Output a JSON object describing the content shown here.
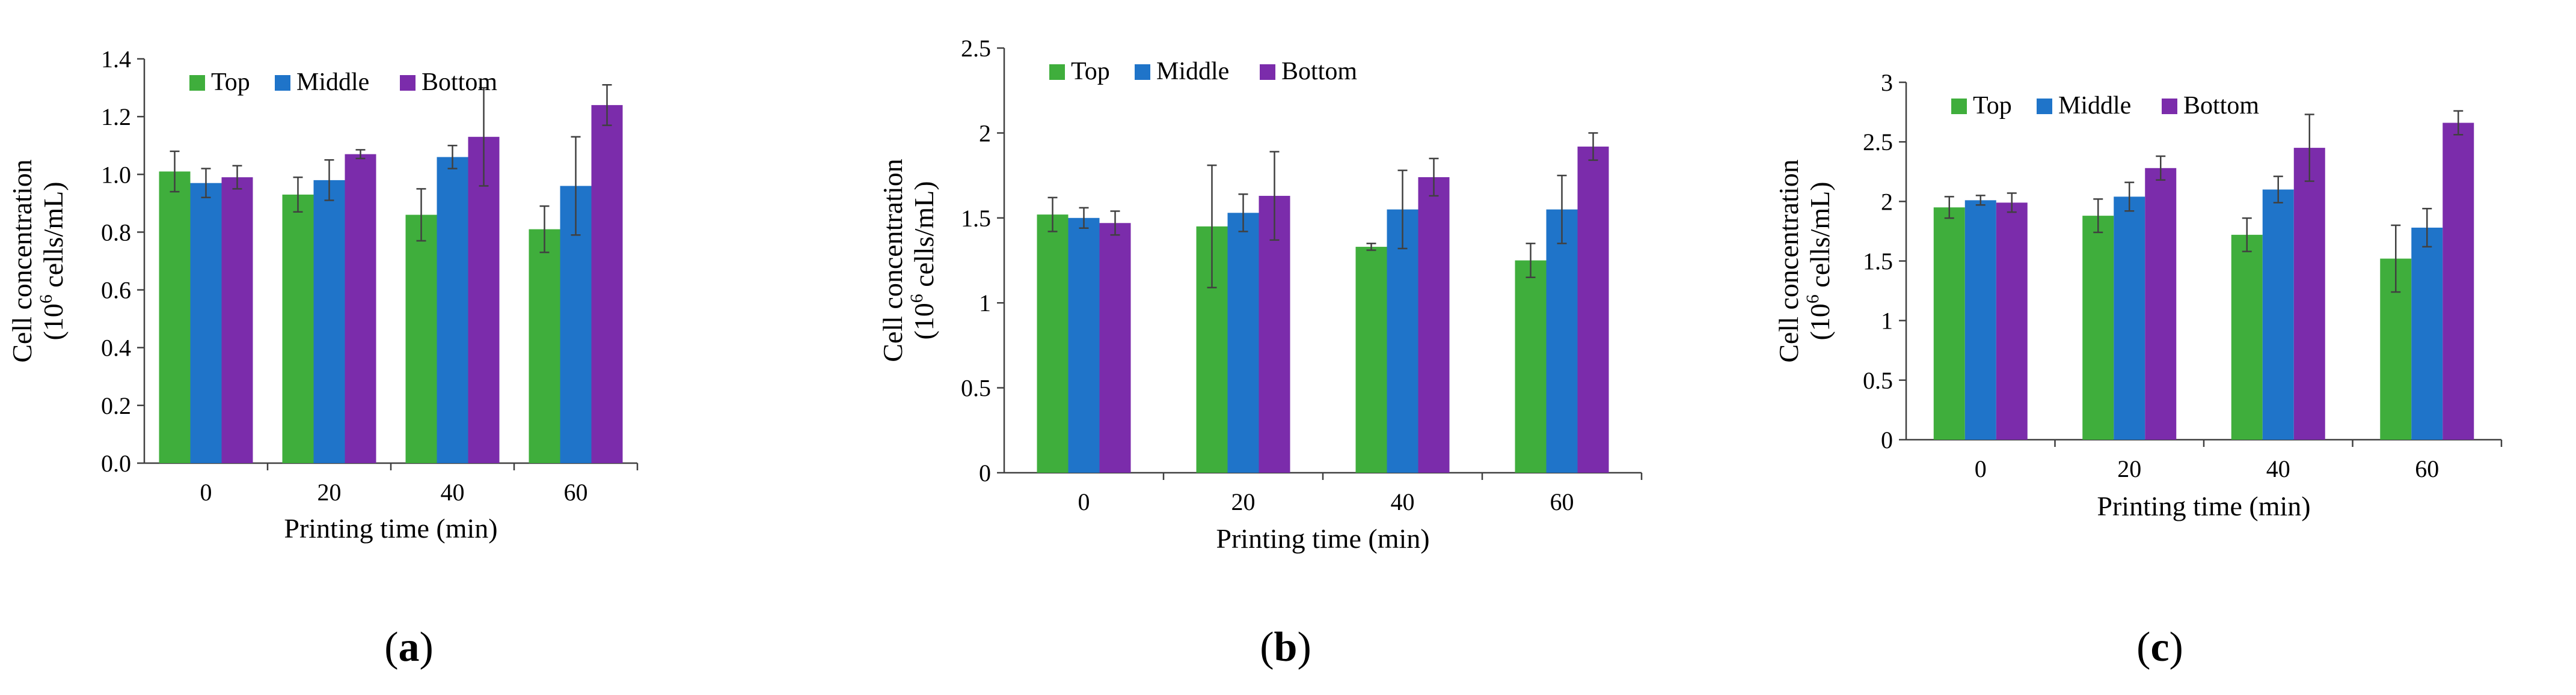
{
  "colors": {
    "top": "#3fae3c",
    "middle": "#1f74c9",
    "bottom": "#7b2cab"
  },
  "chart_data": [
    {
      "type": "bar",
      "panel_label": {
        "open": "(",
        "letter": "a",
        "close": ")"
      },
      "categories": [
        "0",
        "20",
        "40",
        "60"
      ],
      "xlabel": "Printing time (min)",
      "ylabel_main": "Cell concentration",
      "ylabel_sub_prefix": "(10",
      "ylabel_sub_exp": "6",
      "ylabel_sub_suffix": " cells/mL)",
      "ylim": [
        0,
        1.4
      ],
      "yticks": [
        "0.0",
        "0.2",
        "0.4",
        "0.6",
        "0.8",
        "1.0",
        "1.2",
        "1.4"
      ],
      "legend_position": "top-left",
      "series": [
        {
          "name": "Top",
          "color": "#3fae3c",
          "values": [
            1.01,
            0.93,
            0.86,
            0.81
          ],
          "errors": [
            0.07,
            0.06,
            0.09,
            0.08
          ]
        },
        {
          "name": "Middle",
          "color": "#1f74c9",
          "values": [
            0.97,
            0.98,
            1.06,
            0.96
          ],
          "errors": [
            0.05,
            0.07,
            0.04,
            0.17
          ]
        },
        {
          "name": "Bottom",
          "color": "#7b2cab",
          "values": [
            0.99,
            1.07,
            1.13,
            1.24
          ],
          "errors": [
            0.04,
            0.015,
            0.17,
            0.07
          ]
        }
      ]
    },
    {
      "type": "bar",
      "panel_label": {
        "open": "(",
        "letter": "b",
        "close": ")"
      },
      "categories": [
        "0",
        "20",
        "40",
        "60"
      ],
      "xlabel": "Printing time (min)",
      "ylabel_main": "Cell concentration",
      "ylabel_sub_prefix": "(10",
      "ylabel_sub_exp": "6",
      "ylabel_sub_suffix": " cells/mL)",
      "ylim": [
        0,
        2.5
      ],
      "yticks": [
        "0",
        "0.5",
        "1",
        "1.5",
        "2",
        "2.5"
      ],
      "legend_position": "top-left",
      "series": [
        {
          "name": "Top",
          "color": "#3fae3c",
          "values": [
            1.52,
            1.45,
            1.33,
            1.25
          ],
          "errors": [
            0.1,
            0.36,
            0.02,
            0.1
          ]
        },
        {
          "name": "Middle",
          "color": "#1f74c9",
          "values": [
            1.5,
            1.53,
            1.55,
            1.55
          ],
          "errors": [
            0.06,
            0.11,
            0.23,
            0.2
          ]
        },
        {
          "name": "Bottom",
          "color": "#7b2cab",
          "values": [
            1.47,
            1.63,
            1.74,
            1.92
          ],
          "errors": [
            0.07,
            0.26,
            0.11,
            0.08
          ]
        }
      ]
    },
    {
      "type": "bar",
      "panel_label": {
        "open": "(",
        "letter": "c",
        "close": ")"
      },
      "categories": [
        "0",
        "20",
        "40",
        "60"
      ],
      "xlabel": "Printing time (min)",
      "ylabel_main": "Cell concentration",
      "ylabel_sub_prefix": "(10",
      "ylabel_sub_exp": "6",
      "ylabel_sub_suffix": " cells/mL)",
      "ylim": [
        0,
        3
      ],
      "yticks": [
        "0",
        "0.5",
        "1",
        "1.5",
        "2",
        "2.5",
        "3"
      ],
      "legend_position": "top-left",
      "series": [
        {
          "name": "Top",
          "color": "#3fae3c",
          "values": [
            1.95,
            1.88,
            1.72,
            1.52
          ],
          "errors": [
            0.09,
            0.14,
            0.14,
            0.28
          ]
        },
        {
          "name": "Middle",
          "color": "#1f74c9",
          "values": [
            2.01,
            2.04,
            2.1,
            1.78
          ],
          "errors": [
            0.04,
            0.12,
            0.11,
            0.16
          ]
        },
        {
          "name": "Bottom",
          "color": "#7b2cab",
          "values": [
            1.99,
            2.28,
            2.45,
            2.66
          ],
          "errors": [
            0.08,
            0.1,
            0.28,
            0.1
          ]
        }
      ]
    }
  ]
}
